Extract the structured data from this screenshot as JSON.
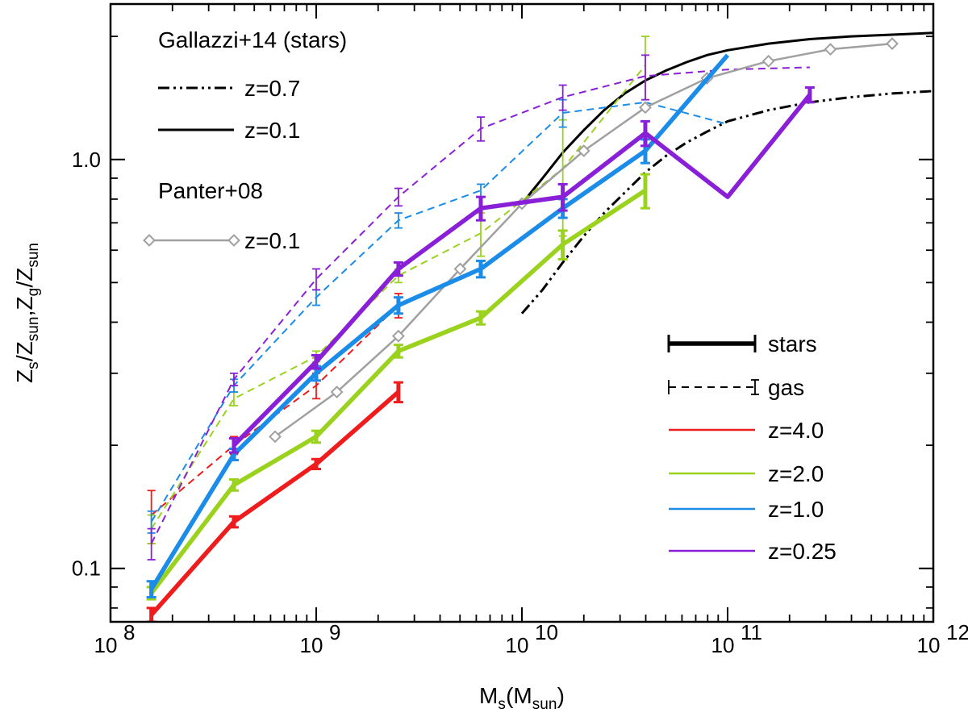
{
  "chart_data": {
    "type": "line",
    "xscale": "log",
    "yscale": "log",
    "xlim": [
      100000000.0,
      1000000000000.0
    ],
    "ylim": [
      0.074,
      2.4
    ],
    "xlabel": {
      "main": "M",
      "sub": "s",
      "mid": " (M",
      "sub2": "sun",
      "end": ")"
    },
    "ylabel": {
      "parts": [
        {
          "t": "Z"
        },
        {
          "t": "s",
          "sub": true
        },
        {
          "t": "/Z"
        },
        {
          "t": "sun",
          "sub": true
        },
        {
          "t": ",Z"
        },
        {
          "t": "g",
          "sub": true
        },
        {
          "t": "/Z"
        },
        {
          "t": "sun",
          "sub": true
        }
      ]
    },
    "xticks": [
      {
        "v": 100000000.0,
        "base": "10",
        "exp": "8"
      },
      {
        "v": 1000000000.0,
        "base": "10",
        "exp": "9"
      },
      {
        "v": 10000000000.0,
        "base": "10",
        "exp": "10"
      },
      {
        "v": 100000000000.0,
        "base": "10",
        "exp": "11"
      },
      {
        "v": 1000000000000.0,
        "base": "10",
        "exp": "12"
      }
    ],
    "yticks": [
      {
        "v": 0.1,
        "label": "0.1"
      },
      {
        "v": 1.0,
        "label": "1.0"
      }
    ],
    "colors": {
      "z4": "#ee1c1c",
      "z2": "#9ad21e",
      "z1": "#1b8ce8",
      "z025": "#8a1fd8",
      "panter": "#a0a0a0",
      "gallazzi": "#000000"
    },
    "stars": [
      {
        "name": "z=4.0",
        "color": "#ee1c1c",
        "x": [
          158000000.0,
          398000000.0,
          1000000000.0,
          2510000000.0
        ],
        "y": [
          0.077,
          0.13,
          0.18,
          0.27
        ],
        "err": [
          0.003,
          0.004,
          0.005,
          0.015
        ]
      },
      {
        "name": "z=2.0",
        "color": "#9ad21e",
        "x": [
          158000000.0,
          398000000.0,
          1000000000.0,
          2510000000.0,
          6310000000.0,
          15800000000.0,
          39800000000.0
        ],
        "y": [
          0.087,
          0.16,
          0.21,
          0.34,
          0.41,
          0.62,
          0.84
        ],
        "err": [
          0.003,
          0.005,
          0.007,
          0.012,
          0.015,
          0.05,
          0.08
        ]
      },
      {
        "name": "z=1.0",
        "color": "#1b8ce8",
        "x": [
          158000000.0,
          398000000.0,
          1000000000.0,
          2510000000.0,
          6310000000.0,
          15800000000.0,
          39800000000.0,
          100000000000.0
        ],
        "y": [
          0.089,
          0.19,
          0.3,
          0.44,
          0.54,
          0.76,
          1.05,
          1.8
        ],
        "err": [
          0.004,
          0.006,
          0.012,
          0.02,
          0.025,
          0.04,
          0.07,
          0
        ]
      },
      {
        "name": "z=0.25",
        "color": "#8a1fd8",
        "x": [
          398000000.0,
          1000000000.0,
          2510000000.0,
          6310000000.0,
          15800000000.0,
          39800000000.0,
          100000000000.0,
          251000000000.0
        ],
        "y": [
          0.2,
          0.32,
          0.54,
          0.76,
          0.81,
          1.16,
          0.81,
          1.44
        ],
        "err": [
          0.008,
          0.012,
          0.02,
          0.05,
          0.06,
          0.08,
          0,
          0.06
        ]
      }
    ],
    "gas": [
      {
        "name": "z=4.0",
        "color": "#ee1c1c",
        "x": [
          158000000.0,
          398000000.0,
          1000000000.0,
          2510000000.0
        ],
        "y": [
          0.135,
          0.2,
          0.28,
          0.44
        ],
        "err": [
          0.02,
          0.01,
          0.02,
          0.03
        ]
      },
      {
        "name": "z=2.0",
        "color": "#9ad21e",
        "x": [
          158000000.0,
          398000000.0,
          1000000000.0,
          2510000000.0,
          6310000000.0,
          15800000000.0,
          39800000000.0
        ],
        "y": [
          0.125,
          0.26,
          0.33,
          0.52,
          0.66,
          0.95,
          1.7
        ],
        "err": [
          0.01,
          0.01,
          0.01,
          0.02,
          0.08,
          0.3,
          0.3
        ]
      },
      {
        "name": "z=1.0",
        "color": "#1b8ce8",
        "x": [
          158000000.0,
          398000000.0,
          1000000000.0,
          2510000000.0,
          6310000000.0,
          15800000000.0,
          39800000000.0,
          100000000000.0
        ],
        "y": [
          0.13,
          0.28,
          0.46,
          0.71,
          0.84,
          1.3,
          1.38,
          1.22
        ],
        "err": [
          0.008,
          0.01,
          0.02,
          0.03,
          0.03,
          0.1,
          0,
          0
        ]
      },
      {
        "name": "z=0.25",
        "color": "#8a1fd8",
        "x": [
          158000000.0,
          398000000.0,
          1000000000.0,
          2510000000.0,
          6310000000.0,
          15800000000.0,
          39800000000.0,
          100000000000.0,
          251000000000.0
        ],
        "y": [
          0.115,
          0.29,
          0.51,
          0.81,
          1.19,
          1.42,
          1.6,
          1.66,
          1.68
        ],
        "err": [
          0.01,
          0.01,
          0.03,
          0.04,
          0.08,
          0.1,
          0.2,
          0,
          0
        ]
      }
    ],
    "panter08": {
      "name": "z=0.1",
      "color": "#a0a0a0",
      "x": [
        631000000.0,
        1260000000.0,
        2510000000.0,
        5010000000.0,
        10000000000.0,
        20000000000.0,
        39800000000.0,
        79400000000.0,
        158000000000.0,
        316000000000.0,
        631000000000.0
      ],
      "y": [
        0.21,
        0.27,
        0.37,
        0.54,
        0.78,
        1.05,
        1.34,
        1.58,
        1.74,
        1.86,
        1.92
      ]
    },
    "gallazzi14": [
      {
        "name": "z=0.7",
        "style": "dash-dot-dot",
        "x": [
          10000000000.0,
          12600000000.0,
          15800000000.0,
          20000000000.0,
          25100000000.0,
          31600000000.0,
          39800000000.0,
          50100000000.0,
          63100000000.0,
          79400000000.0,
          100000000000.0,
          158000000000.0,
          251000000000.0,
          398000000000.0,
          631000000000.0,
          1000000000000.0
        ],
        "y": [
          0.42,
          0.48,
          0.56,
          0.65,
          0.74,
          0.83,
          0.93,
          1.02,
          1.1,
          1.17,
          1.24,
          1.32,
          1.38,
          1.42,
          1.45,
          1.47
        ]
      },
      {
        "name": "z=0.1",
        "style": "solid",
        "x": [
          10000000000.0,
          12600000000.0,
          15800000000.0,
          20000000000.0,
          25100000000.0,
          31600000000.0,
          39800000000.0,
          50100000000.0,
          63100000000.0,
          79400000000.0,
          100000000000.0,
          158000000000.0,
          251000000000.0,
          398000000000.0,
          631000000000.0,
          1000000000000.0
        ],
        "y": [
          0.78,
          0.9,
          1.04,
          1.18,
          1.32,
          1.45,
          1.56,
          1.65,
          1.73,
          1.8,
          1.85,
          1.92,
          1.97,
          2.0,
          2.02,
          2.04
        ]
      }
    ],
    "legend": {
      "gallazzi_title": "Gallazzi+14 (stars)",
      "gallazzi_z07": "z=0.7",
      "gallazzi_z01": "z=0.1",
      "panter_title": "Panter+08",
      "panter_z01": "z=0.1",
      "stars": "stars",
      "gas": "gas",
      "z4": "z=4.0",
      "z2": "z=2.0",
      "z1": "z=1.0",
      "z025": "z=0.25"
    }
  }
}
